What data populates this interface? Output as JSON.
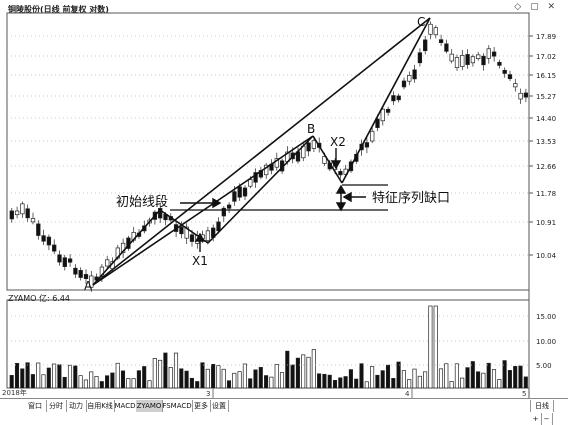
{
  "window": {
    "title": "铜陵股份(日线 前复权 对数)",
    "window_icons": [
      "◇",
      "▢",
      "✕"
    ]
  },
  "price_axis": {
    "labels": [
      "17.89",
      "17.02",
      "16.15",
      "15.27",
      "14.40",
      "13.53",
      "12.66",
      "11.78",
      "10.91",
      "10.04"
    ]
  },
  "annotations": {
    "initial_segment": "初始线段",
    "feature_gap": "特征序列缺口",
    "point_a": "A",
    "point_b": "B",
    "point_c": "C",
    "point_x1": "X1",
    "point_x2": "X2"
  },
  "indicator": {
    "title": "ZYAMO 亿: 6.44",
    "labels": [
      "15.00",
      "10.00",
      "5.00"
    ]
  },
  "time_axis": {
    "year": "2018年",
    "marks": [
      "3",
      "4",
      "5"
    ]
  },
  "tabs": [
    {
      "label": "窗口"
    },
    {
      "label": "分时"
    },
    {
      "label": "动力"
    },
    {
      "label": "自用K线"
    },
    {
      "label": "MACD"
    },
    {
      "label": "ZYAMO"
    },
    {
      "label": "FSMACD"
    },
    {
      "label": "更多"
    },
    {
      "label": "设置"
    }
  ],
  "tab_right": {
    "period": "日线",
    "zoom_in": "+",
    "zoom_out": "−"
  }
}
